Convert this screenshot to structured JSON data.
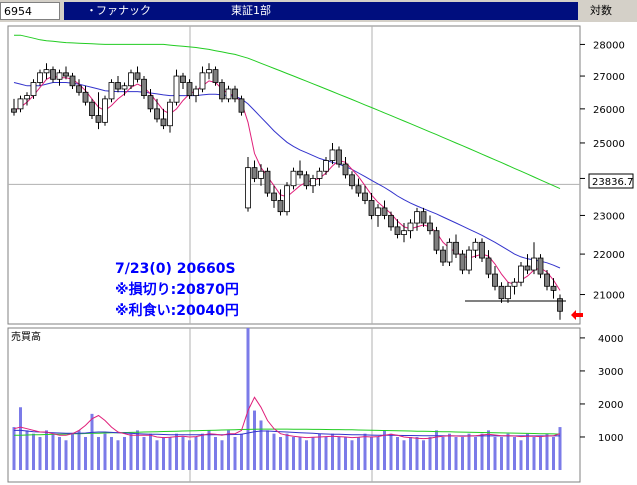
{
  "header": {
    "code": "6954",
    "name": "ファナック",
    "market": "東証1部",
    "scale_label": "対数"
  },
  "price_panel": {
    "current_price_label": "23836.7",
    "annotations": [
      "7/23(0) 20660S",
      "※損切り:20870円",
      "※利食い:20040円"
    ],
    "axis_labels": [
      "28000",
      "27000",
      "26000",
      "25000",
      "24000",
      "23000",
      "22000",
      "21000"
    ]
  },
  "volume_panel": {
    "title": "売買高",
    "axis_labels": [
      "4000",
      "3000",
      "2000",
      "1000"
    ]
  },
  "colors": {
    "header_bar": "#000e7e",
    "bull_candle": "#ffffff",
    "bear_candle": "#7f7f7f",
    "ma_short": "#e0207a",
    "ma_mid": "#3333cc",
    "ma_long": "#22cc22",
    "volume_bar": "#7b7be8",
    "annotation": "#0000ff",
    "arrow": "#ff0000"
  },
  "chart_data": {
    "type": "candlestick",
    "y_scale": "log",
    "ylim": [
      20300,
      28600
    ],
    "volume_ylim": [
      0,
      4300
    ],
    "series": [
      {
        "name": "ohlc",
        "values": [
          [
            26000,
            26300,
            25800,
            25900
          ],
          [
            26000,
            26400,
            25900,
            26300
          ],
          [
            26300,
            26500,
            26100,
            26400
          ],
          [
            26400,
            26900,
            26300,
            26800
          ],
          [
            26800,
            27200,
            26700,
            27100
          ],
          [
            27100,
            27400,
            26900,
            27200
          ],
          [
            27200,
            27300,
            26800,
            26900
          ],
          [
            26900,
            27200,
            26700,
            27100
          ],
          [
            27100,
            27300,
            26900,
            27000
          ],
          [
            27000,
            27100,
            26600,
            26700
          ],
          [
            26700,
            26900,
            26400,
            26500
          ],
          [
            26500,
            26700,
            26100,
            26200
          ],
          [
            26200,
            26300,
            25700,
            25800
          ],
          [
            25800,
            26500,
            25400,
            25600
          ],
          [
            25600,
            26400,
            25500,
            26300
          ],
          [
            26300,
            26900,
            26200,
            26800
          ],
          [
            26800,
            27000,
            26500,
            26600
          ],
          [
            26600,
            26800,
            26400,
            26700
          ],
          [
            26700,
            27200,
            26600,
            27100
          ],
          [
            27100,
            27300,
            26800,
            26900
          ],
          [
            26900,
            27000,
            26300,
            26400
          ],
          [
            26400,
            26600,
            25900,
            26000
          ],
          [
            26000,
            26300,
            25600,
            25700
          ],
          [
            25700,
            26000,
            25400,
            25500
          ],
          [
            25500,
            26300,
            25300,
            26200
          ],
          [
            26200,
            27200,
            26100,
            27000
          ],
          [
            27000,
            27100,
            26600,
            26800
          ],
          [
            26800,
            26900,
            26300,
            26400
          ],
          [
            26400,
            26700,
            26200,
            26600
          ],
          [
            26600,
            27300,
            26500,
            27100
          ],
          [
            27100,
            27400,
            26900,
            27200
          ],
          [
            27200,
            27300,
            26700,
            26800
          ],
          [
            26800,
            26900,
            26200,
            26300
          ],
          [
            26300,
            26700,
            26200,
            26600
          ],
          [
            26600,
            26700,
            26200,
            26300
          ],
          [
            26300,
            26400,
            25800,
            25900
          ],
          [
            23200,
            24600,
            23100,
            24300
          ],
          [
            24300,
            24500,
            23900,
            24000
          ],
          [
            24000,
            24400,
            23800,
            24200
          ],
          [
            24200,
            24300,
            23500,
            23600
          ],
          [
            23600,
            23800,
            23200,
            23400
          ],
          [
            23400,
            23700,
            23000,
            23100
          ],
          [
            23100,
            23900,
            23000,
            23800
          ],
          [
            23800,
            24300,
            23700,
            24200
          ],
          [
            24200,
            24500,
            24000,
            24100
          ],
          [
            24100,
            24200,
            23700,
            23800
          ],
          [
            23800,
            24100,
            23600,
            24000
          ],
          [
            24000,
            24300,
            23800,
            24200
          ],
          [
            24200,
            24600,
            24100,
            24500
          ],
          [
            24500,
            25000,
            24400,
            24800
          ],
          [
            24800,
            24900,
            24300,
            24400
          ],
          [
            24400,
            24600,
            24000,
            24100
          ],
          [
            24100,
            24200,
            23700,
            23800
          ],
          [
            23800,
            24000,
            23500,
            23600
          ],
          [
            23600,
            23800,
            23300,
            23400
          ],
          [
            23400,
            23600,
            22900,
            23000
          ],
          [
            23000,
            23300,
            22700,
            23200
          ],
          [
            23200,
            23400,
            22900,
            23000
          ],
          [
            23000,
            23100,
            22600,
            22700
          ],
          [
            22700,
            22900,
            22400,
            22500
          ],
          [
            22500,
            22800,
            22300,
            22600
          ],
          [
            22600,
            22900,
            22400,
            22800
          ],
          [
            22800,
            23200,
            22600,
            23100
          ],
          [
            23100,
            23200,
            22700,
            22800
          ],
          [
            22800,
            23000,
            22500,
            22600
          ],
          [
            22600,
            22700,
            22000,
            22100
          ],
          [
            22100,
            22200,
            21700,
            21800
          ],
          [
            21800,
            22400,
            21700,
            22300
          ],
          [
            22300,
            22500,
            21900,
            22000
          ],
          [
            22000,
            22100,
            21500,
            21600
          ],
          [
            21600,
            22200,
            21500,
            22100
          ],
          [
            22100,
            22400,
            21900,
            22300
          ],
          [
            22300,
            22400,
            21800,
            21900
          ],
          [
            21900,
            22100,
            21400,
            21500
          ],
          [
            21500,
            21700,
            21100,
            21200
          ],
          [
            21200,
            21300,
            20800,
            20900
          ],
          [
            20900,
            21300,
            20800,
            21200
          ],
          [
            21200,
            21400,
            21000,
            21300
          ],
          [
            21300,
            21800,
            21200,
            21700
          ],
          [
            21700,
            22000,
            21500,
            21600
          ],
          [
            21600,
            22300,
            21500,
            21900
          ],
          [
            21900,
            22000,
            21400,
            21500
          ],
          [
            21500,
            21600,
            21100,
            21200
          ],
          [
            21200,
            21400,
            20900,
            21100
          ],
          [
            20900,
            21000,
            20400,
            20600
          ]
        ]
      },
      {
        "name": "ma_short",
        "values": [
          25950,
          26050,
          26200,
          26400,
          26650,
          26900,
          27000,
          26950,
          26950,
          26900,
          26750,
          26550,
          26300,
          26050,
          25950,
          26100,
          26300,
          26450,
          26650,
          26750,
          26650,
          26450,
          26200,
          25950,
          25850,
          26000,
          26250,
          26450,
          26550,
          26700,
          26850,
          26800,
          26600,
          26450,
          26400,
          26200,
          25600,
          24700,
          24300,
          24050,
          23800,
          23550,
          23500,
          23650,
          23800,
          23900,
          23950,
          24000,
          24150,
          24350,
          24500,
          24450,
          24250,
          24050,
          23800,
          23550,
          23350,
          23200,
          23050,
          22850,
          22700,
          22650,
          22700,
          22750,
          22700,
          22550,
          22300,
          22150,
          22050,
          21950,
          21900,
          21950,
          22000,
          21950,
          21750,
          21500,
          21300,
          21250,
          21350,
          21450,
          21600,
          21650,
          21550,
          21350,
          21100
        ]
      },
      {
        "name": "ma_mid",
        "values": [
          26800,
          26750,
          26700,
          26700,
          26700,
          26750,
          26800,
          26800,
          26800,
          26780,
          26750,
          26700,
          26650,
          26600,
          26550,
          26530,
          26520,
          26520,
          26520,
          26520,
          26500,
          26480,
          26450,
          26420,
          26400,
          26400,
          26400,
          26400,
          26400,
          26420,
          26440,
          26440,
          26420,
          26400,
          26380,
          26300,
          26150,
          25950,
          25750,
          25550,
          25350,
          25180,
          25020,
          24900,
          24800,
          24720,
          24640,
          24560,
          24500,
          24450,
          24400,
          24330,
          24250,
          24150,
          24050,
          23950,
          23850,
          23750,
          23640,
          23520,
          23420,
          23330,
          23250,
          23180,
          23110,
          23040,
          22960,
          22880,
          22800,
          22720,
          22640,
          22560,
          22480,
          22390,
          22300,
          22200,
          22100,
          22000,
          21930,
          21880,
          21850,
          21820,
          21780,
          21720,
          21650
        ]
      },
      {
        "name": "ma_long",
        "values": [
          28300,
          28300,
          28250,
          28200,
          28150,
          28120,
          28100,
          28080,
          28060,
          28050,
          28040,
          28030,
          28020,
          28010,
          28000,
          28000,
          28000,
          28000,
          28000,
          28000,
          28000,
          28000,
          28000,
          28000,
          27980,
          27960,
          27940,
          27920,
          27900,
          27870,
          27840,
          27800,
          27760,
          27720,
          27680,
          27620,
          27560,
          27480,
          27400,
          27320,
          27240,
          27160,
          27080,
          27000,
          26920,
          26840,
          26760,
          26680,
          26600,
          26520,
          26440,
          26360,
          26280,
          26200,
          26120,
          26040,
          25960,
          25880,
          25800,
          25720,
          25640,
          25560,
          25480,
          25400,
          25320,
          25240,
          25160,
          25080,
          25000,
          24920,
          24840,
          24760,
          24680,
          24600,
          24520,
          24440,
          24360,
          24280,
          24200,
          24120,
          24040,
          23960,
          23880,
          23800,
          23720
        ]
      },
      {
        "name": "volume",
        "values": [
          1300,
          1900,
          1200,
          1100,
          1000,
          1200,
          1100,
          1000,
          900,
          1100,
          1200,
          1000,
          1700,
          1000,
          1100,
          1000,
          900,
          1000,
          1100,
          1200,
          1000,
          1100,
          900,
          1000,
          1000,
          1100,
          1000,
          900,
          1000,
          1100,
          1200,
          1000,
          900,
          1200,
          1000,
          1100,
          4300,
          1800,
          1500,
          1200,
          1100,
          1000,
          1100,
          1000,
          1000,
          900,
          1000,
          1100,
          1000,
          1100,
          1000,
          1000,
          900,
          1000,
          1100,
          1000,
          1000,
          1200,
          1100,
          1000,
          900,
          1000,
          1000,
          900,
          1000,
          1200,
          1000,
          1100,
          1000,
          1000,
          1100,
          1000,
          1100,
          1200,
          1000,
          1000,
          1100,
          1000,
          900,
          1100,
          1000,
          1000,
          1100,
          1000,
          1300
        ]
      },
      {
        "name": "vol_ma_short",
        "values": [
          1250,
          1300,
          1250,
          1200,
          1150,
          1150,
          1100,
          1050,
          1050,
          1100,
          1200,
          1350,
          1550,
          1650,
          1500,
          1300,
          1150,
          1100,
          1050,
          1050,
          1050,
          1050,
          1000,
          980,
          990,
          1010,
          1020,
          1000,
          1010,
          1050,
          1100,
          1080,
          1050,
          1100,
          1100,
          1200,
          1800,
          2200,
          1900,
          1500,
          1250,
          1100,
          1050,
          1020,
          1000,
          980,
          990,
          1000,
          1010,
          1020,
          1010,
          1000,
          980,
          990,
          1010,
          1000,
          1010,
          1050,
          1080,
          1050,
          1000,
          980,
          960,
          950,
          960,
          1000,
          1020,
          1040,
          1030,
          1020,
          1030,
          1040,
          1060,
          1080,
          1060,
          1040,
          1040,
          1030,
          1010,
          1020,
          1020,
          1010,
          1030,
          1040,
          1100
        ]
      },
      {
        "name": "vol_ma_mid",
        "values": [
          1200,
          1200,
          1180,
          1160,
          1150,
          1140,
          1130,
          1120,
          1110,
          1110,
          1110,
          1120,
          1140,
          1150,
          1150,
          1140,
          1130,
          1120,
          1110,
          1100,
          1090,
          1085,
          1080,
          1075,
          1070,
          1070,
          1070,
          1068,
          1066,
          1066,
          1070,
          1072,
          1070,
          1072,
          1074,
          1080,
          1120,
          1160,
          1180,
          1180,
          1170,
          1160,
          1150,
          1140,
          1130,
          1120,
          1110,
          1100,
          1090,
          1085,
          1080,
          1075,
          1070,
          1066,
          1062,
          1058,
          1055,
          1052,
          1050,
          1048,
          1046,
          1044,
          1042,
          1040,
          1038,
          1036,
          1035,
          1034,
          1033,
          1032,
          1032,
          1032,
          1032,
          1032,
          1032,
          1032,
          1032,
          1032,
          1032,
          1032,
          1032,
          1032,
          1032,
          1032,
          1032
        ]
      },
      {
        "name": "vol_ma_long",
        "values": [
          1050,
          1055,
          1060,
          1065,
          1070,
          1075,
          1080,
          1085,
          1090,
          1095,
          1100,
          1105,
          1110,
          1115,
          1120,
          1125,
          1130,
          1135,
          1140,
          1145,
          1150,
          1155,
          1160,
          1165,
          1170,
          1175,
          1180,
          1185,
          1190,
          1195,
          1200,
          1205,
          1210,
          1215,
          1220,
          1225,
          1230,
          1235,
          1238,
          1240,
          1240,
          1240,
          1238,
          1236,
          1234,
          1232,
          1230,
          1228,
          1226,
          1224,
          1222,
          1220,
          1216,
          1212,
          1208,
          1204,
          1200,
          1196,
          1192,
          1188,
          1184,
          1180,
          1176,
          1172,
          1168,
          1164,
          1160,
          1156,
          1152,
          1148,
          1144,
          1140,
          1136,
          1132,
          1128,
          1124,
          1120,
          1116,
          1112,
          1108,
          1104,
          1100,
          1096,
          1092,
          1088
        ]
      }
    ],
    "reference_levels": [
      21000,
      23836.7
    ],
    "xlabel": "",
    "ylabel": ""
  }
}
